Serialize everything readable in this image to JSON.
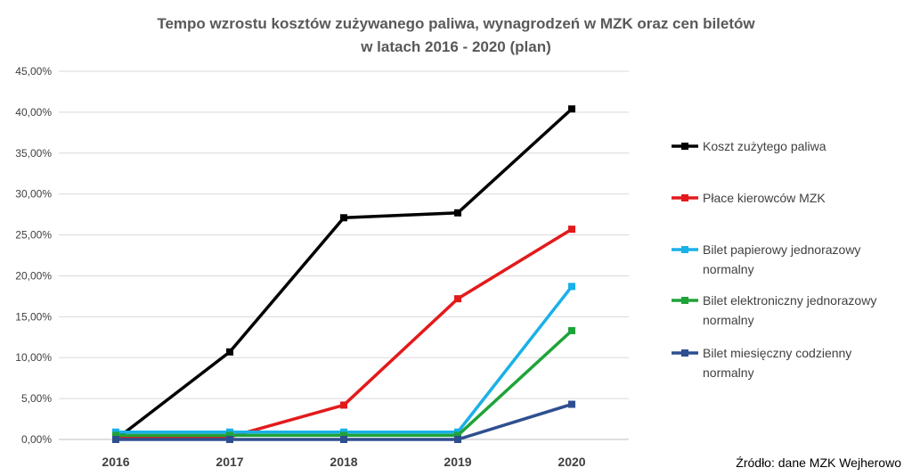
{
  "chart_data": {
    "type": "line",
    "title_line1": "Tempo wzrostu kosztów zużywanego paliwa, wynagrodzeń w MZK oraz cen biletów",
    "title_line2": "w latach 2016 - 2020 (plan)",
    "xlabel": "",
    "ylabel": "",
    "x": [
      "2016",
      "2017",
      "2018",
      "2019",
      "2020"
    ],
    "ylim": [
      0,
      45
    ],
    "ytick_values": [
      0,
      5,
      10,
      15,
      20,
      25,
      30,
      35,
      40,
      45
    ],
    "ytick_labels": [
      "0,00%",
      "5,00%",
      "10,00%",
      "15,00%",
      "20,00%",
      "25,00%",
      "30,00%",
      "35,00%",
      "40,00%",
      "45,00%"
    ],
    "grid": true,
    "legend_position": "right",
    "series": [
      {
        "name_lines": [
          "Koszt zużytego paliwa"
        ],
        "color": "#000000",
        "values": [
          0.0,
          10.7,
          27.1,
          27.7,
          40.4
        ]
      },
      {
        "name_lines": [
          "Płace kierowców MZK"
        ],
        "color": "#e31a1c",
        "values": [
          0.3,
          0.3,
          4.2,
          17.2,
          25.7
        ]
      },
      {
        "name_lines": [
          "Bilet papierowy jednorazowy",
          "normalny"
        ],
        "color": "#1ab0e8",
        "values": [
          0.9,
          0.9,
          0.9,
          0.9,
          18.7
        ]
      },
      {
        "name_lines": [
          "Bilet elektroniczny jednorazowy",
          "normalny"
        ],
        "color": "#1fa33a",
        "values": [
          0.5,
          0.5,
          0.5,
          0.5,
          13.3
        ]
      },
      {
        "name_lines": [
          "Bilet miesięczny codzienny",
          "normalny"
        ],
        "color": "#2e4f8f",
        "values": [
          0.0,
          0.0,
          0.0,
          0.0,
          4.3
        ]
      }
    ]
  },
  "source_text": "Źródło: dane MZK Wejherowo"
}
